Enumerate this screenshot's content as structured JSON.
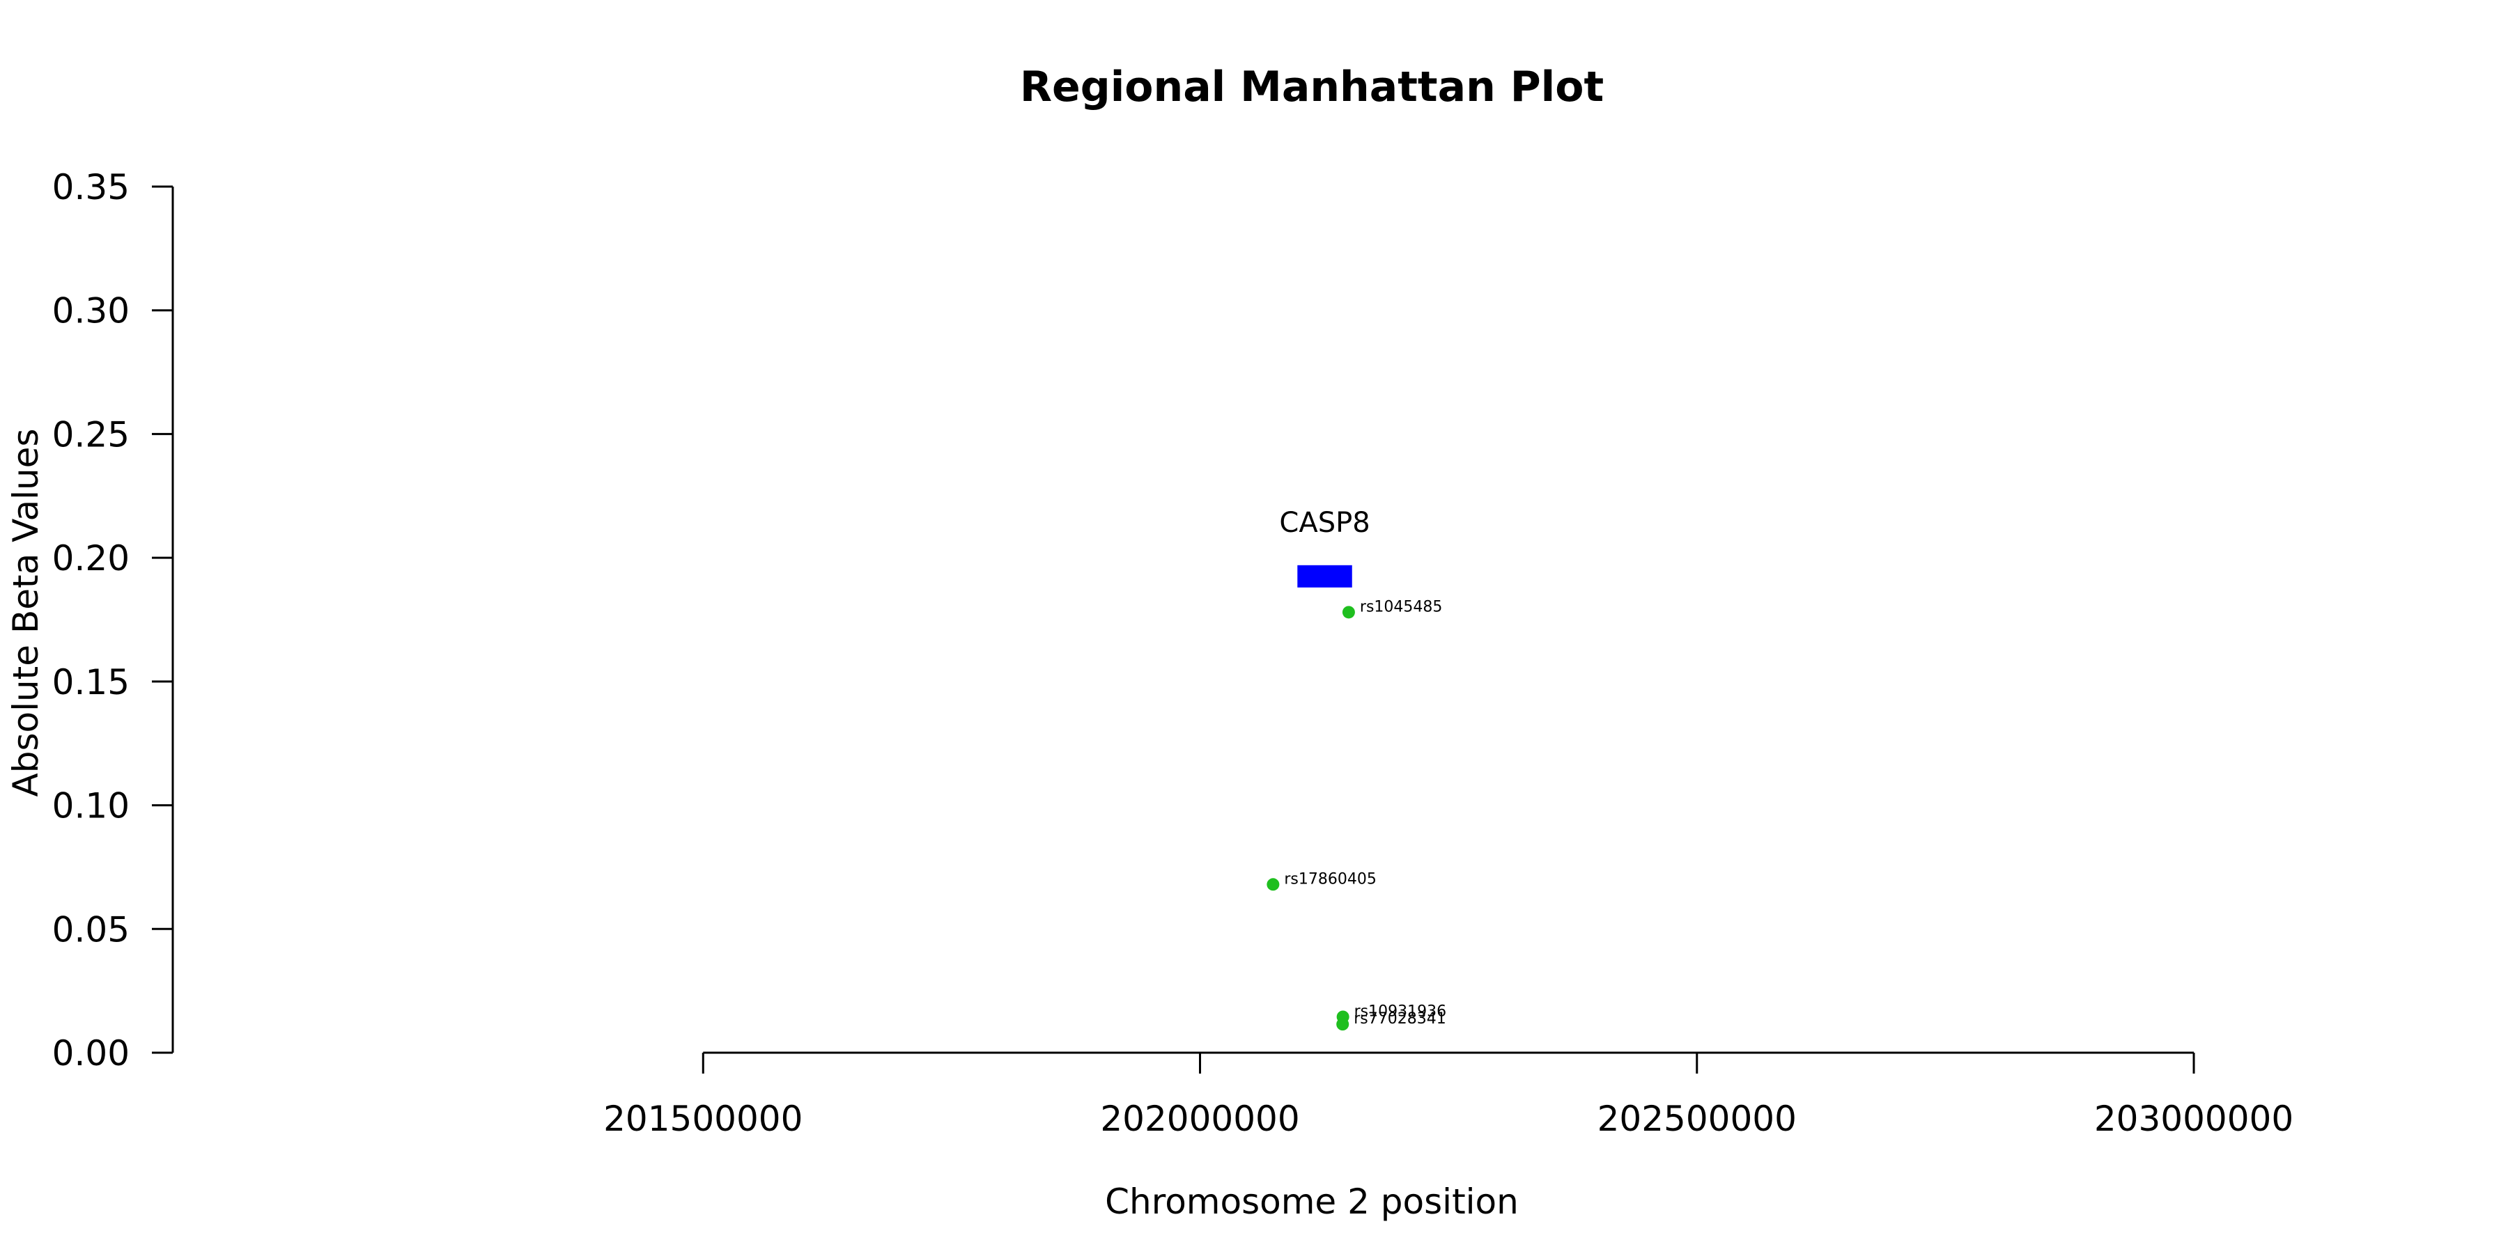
{
  "chart_data": {
    "type": "scatter",
    "title": "Regional Manhattan Plot",
    "xlabel": "Chromosome 2 position",
    "ylabel": "Absolute Beta Values",
    "xlim": [
      201075000,
      203150000
    ],
    "ylim": [
      0,
      0.35
    ],
    "x_ticks": [
      {
        "value": 201500000,
        "label": "201500000"
      },
      {
        "value": 202000000,
        "label": "202000000"
      },
      {
        "value": 202500000,
        "label": "202500000"
      },
      {
        "value": 203000000,
        "label": "203000000"
      }
    ],
    "y_ticks": [
      {
        "value": 0.0,
        "label": "0.00"
      },
      {
        "value": 0.05,
        "label": "0.05"
      },
      {
        "value": 0.1,
        "label": "0.10"
      },
      {
        "value": 0.15,
        "label": "0.15"
      },
      {
        "value": 0.2,
        "label": "0.20"
      },
      {
        "value": 0.25,
        "label": "0.25"
      },
      {
        "value": 0.3,
        "label": "0.30"
      },
      {
        "value": 0.35,
        "label": "0.35"
      }
    ],
    "x_axis_range": [
      201500000,
      203000000
    ],
    "y_axis_range": [
      0,
      0.35
    ],
    "grid": false,
    "point_color": "#1fbf1f",
    "points": [
      {
        "label": "rs1045485",
        "x": 202149600,
        "y": 0.178
      },
      {
        "label": "rs17860405",
        "x": 202073500,
        "y": 0.068
      },
      {
        "label": "rs10931936",
        "x": 202143800,
        "y": 0.0145
      },
      {
        "label": "rs77028341",
        "x": 202143500,
        "y": 0.0115
      }
    ],
    "gene": {
      "name": "CASP8",
      "start": 202098000,
      "end": 202153000,
      "y_low": 0.188,
      "y_high": 0.197,
      "color": "#0000ff"
    }
  }
}
